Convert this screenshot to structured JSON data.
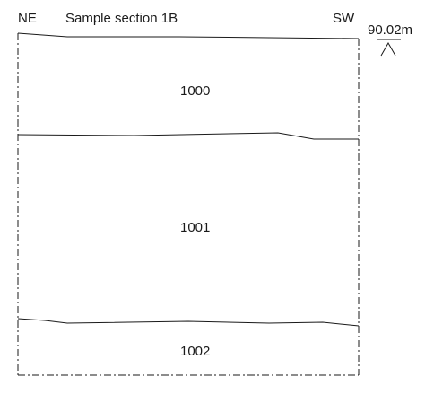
{
  "header": {
    "left_orientation": "NE",
    "title": "Sample section 1B",
    "right_orientation": "SW"
  },
  "datum": {
    "level": "90.02m"
  },
  "contexts": [
    {
      "number": "1000"
    },
    {
      "number": "1001"
    },
    {
      "number": "1002"
    }
  ]
}
